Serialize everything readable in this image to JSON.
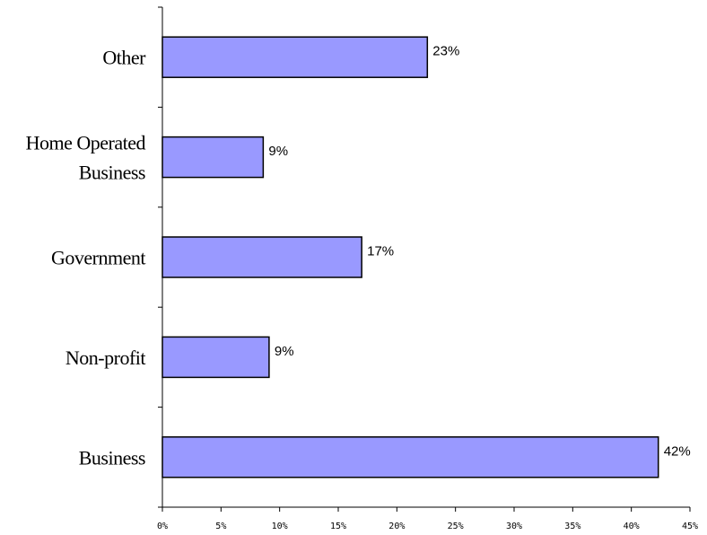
{
  "chart_data": {
    "type": "bar",
    "orientation": "horizontal",
    "categories": [
      "Business",
      "Non-profit",
      "Government",
      "Home Operated Business",
      "Other"
    ],
    "category_lines": [
      [
        "Business"
      ],
      [
        "Non-profit"
      ],
      [
        "Government"
      ],
      [
        "Home Operated",
        "Business"
      ],
      [
        "Other"
      ]
    ],
    "values": [
      42.3,
      9.1,
      17.0,
      8.6,
      22.6
    ],
    "data_labels": [
      "42%",
      "9%",
      "17%",
      "9%",
      "23%"
    ],
    "xlim": [
      0,
      45
    ],
    "xticks": [
      0,
      5,
      10,
      15,
      20,
      25,
      30,
      35,
      40,
      45
    ],
    "xtick_labels": [
      "0%",
      "5%",
      "10%",
      "15%",
      "20%",
      "25%",
      "30%",
      "35%",
      "40%",
      "45%"
    ],
    "bar_color": "#9999ff",
    "bar_edge_color": "#000000",
    "grid": false,
    "legend": "none",
    "title": "",
    "xlabel": "",
    "ylabel": ""
  }
}
